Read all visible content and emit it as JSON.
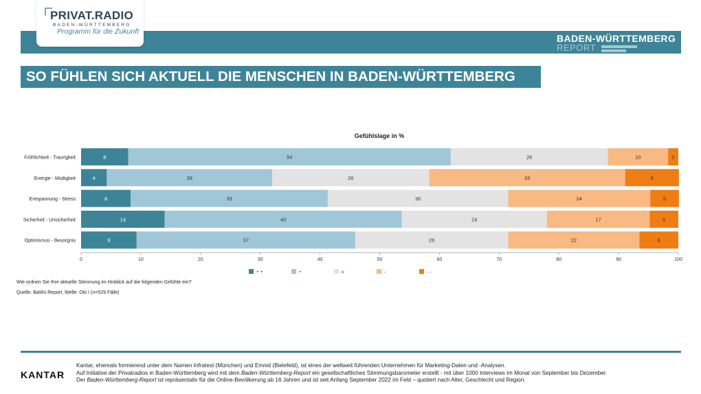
{
  "header": {
    "logo_title": "PRIVAT.RADIO",
    "logo_subtitle": "BADEN-WÜRTTEMBERG",
    "logo_tagline": "Programm für die Zukunft",
    "report_line1": "BADEN-WÜRTTEMBERG",
    "report_line2": "REPORT"
  },
  "headline": "SO FÜHLEN SICH AKTUELL DIE MENSCHEN IN BADEN-WÜRTTEMBERG",
  "colors": {
    "brand": "#3e8499",
    "series": [
      "#3e8499",
      "#a0c7d8",
      "#e3e3e3",
      "#f8b983",
      "#ef7d14"
    ]
  },
  "chart_data": {
    "type": "bar",
    "orientation": "horizontal",
    "stacked": true,
    "title": "Gefühlslage in %",
    "categories": [
      "Fröhlichkeit - Traurigkeit",
      "Energie - Müdigkeit",
      "Entspannung - Stress",
      "Sicherheit - Unsicherheit",
      "Optimismus - Besorgnis"
    ],
    "series": [
      {
        "name": "+ +",
        "values": [
          8,
          4,
          8,
          14,
          9
        ],
        "widths": [
          7.9,
          4.3,
          8.3,
          14.0,
          9.3
        ]
      },
      {
        "name": "+",
        "values": [
          54,
          28,
          33,
          40,
          37
        ],
        "widths": [
          54.0,
          27.7,
          33.0,
          39.7,
          36.6
        ]
      },
      {
        "name": "o",
        "values": [
          26,
          26,
          30,
          24,
          26
        ],
        "widths": [
          26.3,
          26.3,
          30.2,
          24.3,
          25.6
        ]
      },
      {
        "name": "-",
        "values": [
          10,
          33,
          24,
          17,
          22
        ],
        "widths": [
          10.1,
          32.8,
          23.8,
          17.2,
          22.0
        ]
      },
      {
        "name": "- -",
        "values": [
          2,
          9,
          5,
          5,
          6
        ],
        "widths": [
          1.7,
          9.0,
          4.8,
          4.8,
          6.5
        ]
      }
    ],
    "xlim": [
      0,
      100
    ],
    "xticks": [
      "0",
      "10",
      "20",
      "30",
      "40",
      "50",
      "60",
      "70",
      "80",
      "90",
      "100"
    ],
    "legend_position": "bottom"
  },
  "notes": {
    "question": "Wie ordnen Sie Ihre aktuelle Stimmung im Hinblick auf die folgenden Gefühle ein?",
    "source": "Quelle: BaWü Report, Welle: Okt I (n=529 Fälle)"
  },
  "footer": {
    "brand": "KANTAR",
    "line1": "Kantar, ehemals formierend unter dem Namen Infratest (München) und Emnid (Bielefeld), ist eines der weltweit führenden Unternehmen für Marketing-Daten und -Analysen.",
    "line2_a": "Auf Initiative der Privatradios in Baden-Württemberg wird mit dem ",
    "line2_em": "Baden-Württemberg-Report",
    "line2_b": " ein gesellschaftliches Stimmungsbarometer erstellt - mit über 1000 Interviews im Monat von September bis Dezember.",
    "line3_a": "Der ",
    "line3_em": "Baden-Württemberg-Report",
    "line3_b": " ist repräsentativ für die Online-Bevölkerung ab 16 Jahren und ist seit Anfang September 2022 im Feld – quotiert nach Alter, Geschlecht und Region."
  }
}
